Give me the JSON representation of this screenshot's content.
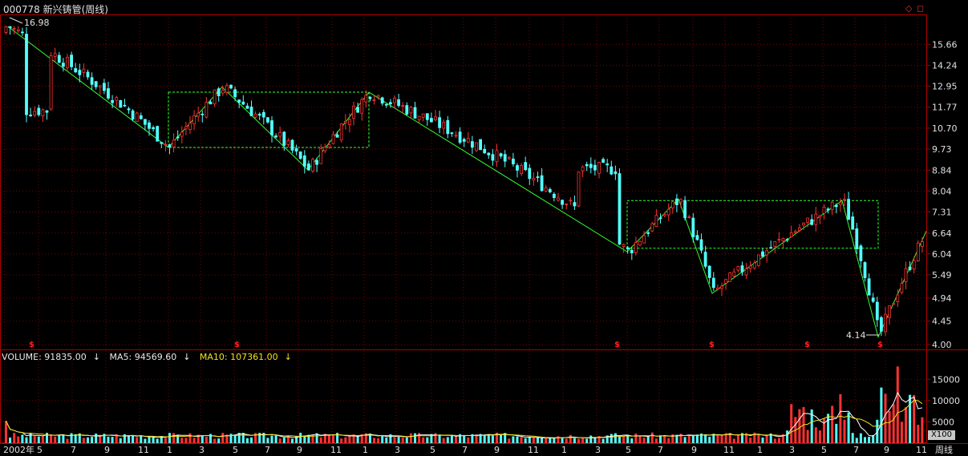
{
  "header": {
    "title": "000778 新兴铸管(周线)",
    "window_icons": [
      "diamond-icon",
      "restore-window-icon"
    ]
  },
  "volume_legend": {
    "volume": "VOLUME: 91835.00",
    "ma5": "MA5: 94569.60",
    "ma10": "MA10: 107361.00",
    "arrow": "↓"
  },
  "volume_unit": "X100",
  "period_label": "周线",
  "colors": {
    "up": "#ff3232",
    "down": "#54ffff",
    "grid": "#800000",
    "zigzag": "#30ff30",
    "axis_text": "#e0e0e0",
    "ma5": "#ffffff",
    "ma10": "#f0e020",
    "marker": "#ff2020"
  },
  "chart_data": {
    "type": "candlestick",
    "price_axis": {
      "ticks": [
        "15.66",
        "14.24",
        "12.95",
        "11.77",
        "10.70",
        "9.73",
        "8.84",
        "8.04",
        "7.31",
        "6.64",
        "6.04",
        "5.49",
        "4.94",
        "4.45",
        "4.00"
      ],
      "log_scale": true
    },
    "volume_axis": {
      "ticks": [
        "15000",
        "10000",
        "5000"
      ]
    },
    "x_axis_labels": [
      "2002年",
      "5",
      "7",
      "9",
      "11",
      "1",
      "3",
      "5",
      "7",
      "9",
      "11",
      "1",
      "3",
      "5",
      "7",
      "9",
      "11",
      "1",
      "3",
      "5",
      "7",
      "9",
      "11",
      "1",
      "3",
      "5",
      "7",
      "9",
      "11"
    ],
    "annotations": {
      "high_label": "16.98",
      "low_label": "4.14",
      "marker_symbol": "$"
    },
    "zigzag_points": [
      16.98,
      9.8,
      12.9,
      8.85,
      12.6,
      6.1,
      7.75,
      5.05,
      7.7,
      4.14,
      6.7
    ],
    "box_ranges": [
      [
        9.8,
        12.6
      ],
      [
        6.2,
        7.7
      ]
    ],
    "grid": true
  }
}
